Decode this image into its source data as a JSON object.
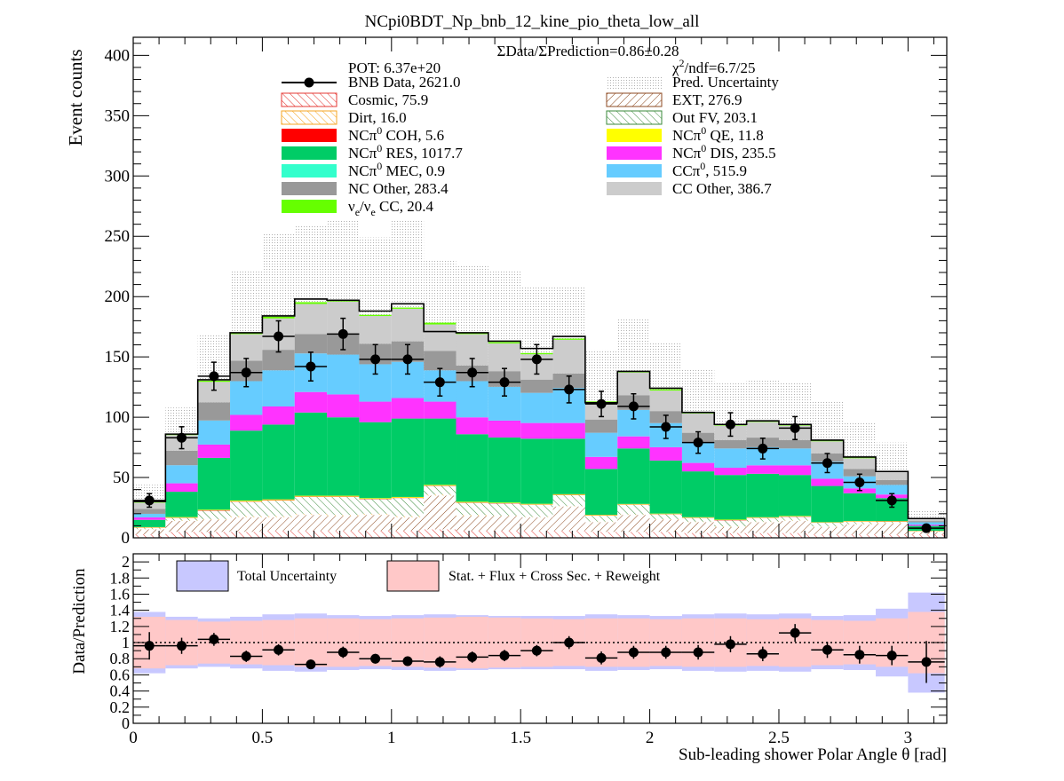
{
  "title": "NCpi0BDT_Np_bnb_12_kine_pio_theta_low_all",
  "chart_data": [
    {
      "type": "bar",
      "stacked": true,
      "ylabel": "Event counts",
      "xlim": [
        0,
        3.15
      ],
      "ylim": [
        0,
        415
      ],
      "yticks": [
        0,
        50,
        100,
        150,
        200,
        250,
        300,
        350,
        400
      ],
      "bin_edges": [
        0,
        0.125,
        0.25,
        0.375,
        0.5,
        0.625,
        0.75,
        0.875,
        1.0,
        1.125,
        1.25,
        1.375,
        1.5,
        1.625,
        1.75,
        1.875,
        2.0,
        2.125,
        2.25,
        2.375,
        2.5,
        2.625,
        2.75,
        2.875,
        3.0,
        3.142
      ],
      "annotations": {
        "ratio": "ΣData/ΣPrediction=0.86±0.28",
        "pot": "POT: 6.37e+20",
        "chi2_lead": "χ",
        "chi2_sup": "2",
        "chi2_rest": "/ndf=6.7/25"
      },
      "legend": [
        {
          "key": "data",
          "label": "BNB Data, 2621.0",
          "style": "marker",
          "color": "#000000"
        },
        {
          "key": "unc",
          "label": "Pred. Uncertainty",
          "style": "dots",
          "color": "#bdbdbd"
        },
        {
          "key": "cosmic",
          "label": "Cosmic, 75.9",
          "style": "hatch",
          "color": "#e53935"
        },
        {
          "key": "ext",
          "label": "EXT, 276.9",
          "style": "hatch",
          "color": "#8d4a20"
        },
        {
          "key": "dirt",
          "label": "Dirt, 16.0",
          "style": "hatch",
          "color": "#f5a623"
        },
        {
          "key": "outfv",
          "label": "Out FV, 203.1",
          "style": "hatch",
          "color": "#3a8a3a"
        },
        {
          "key": "coh",
          "label_a": "NCπ",
          "label_sup": "0",
          "label_b": " COH,  5.6",
          "style": "solid",
          "color": "#ff0000"
        },
        {
          "key": "qe",
          "label_a": "NCπ",
          "label_sup": "0",
          "label_b": " QE,  11.8",
          "style": "solid",
          "color": "#ffff00"
        },
        {
          "key": "res",
          "label_a": "NCπ",
          "label_sup": "0",
          "label_b": " RES,  1017.7",
          "style": "solid",
          "color": "#00cc66"
        },
        {
          "key": "dis",
          "label_a": "NCπ",
          "label_sup": "0",
          "label_b": " DIS,  235.5",
          "style": "solid",
          "color": "#ff33ff"
        },
        {
          "key": "mec",
          "label_a": "NCπ",
          "label_sup": "0",
          "label_b": " MEC,  0.9",
          "style": "solid",
          "color": "#33ffcc"
        },
        {
          "key": "ccpi0",
          "label_a": "CCπ",
          "label_sup": "0",
          "label_b": ", 515.9",
          "style": "solid",
          "color": "#66ccff"
        },
        {
          "key": "ncother",
          "label": "NC Other, 283.4",
          "style": "solid",
          "color": "#999999"
        },
        {
          "key": "ccother",
          "label": "CC Other, 386.7",
          "style": "solid",
          "color": "#cccccc"
        },
        {
          "key": "nue",
          "label_a": "ν",
          "label_sub": "e",
          "label_mid": "/ν",
          "label_sub2": "e",
          "label_b": " CC, 20.4",
          "style": "solid",
          "color": "#66ff00"
        }
      ],
      "series": [
        {
          "name": "Cosmic",
          "key": "cosmic",
          "values": [
            3,
            5,
            5,
            5,
            6,
            6,
            6,
            6,
            6,
            7,
            6,
            6,
            6,
            6,
            5,
            5,
            5,
            4,
            4,
            4,
            4,
            3,
            3,
            3,
            3
          ]
        },
        {
          "name": "EXT",
          "key": "ext",
          "values": [
            4,
            9,
            10,
            12,
            11,
            13,
            12,
            13,
            11,
            28,
            12,
            12,
            11,
            20,
            8,
            14,
            10,
            9,
            5,
            9,
            10,
            6,
            8,
            9,
            2
          ]
        },
        {
          "name": "Dirt",
          "key": "dirt",
          "values": [
            0.5,
            0.5,
            0.5,
            1,
            1,
            1,
            1,
            1,
            1,
            1,
            1,
            0.5,
            0.5,
            0.5,
            0.5,
            0.5,
            0.5,
            0.5,
            0.5,
            0.5,
            0.5,
            0.5,
            0.5,
            0.5,
            0.2
          ]
        },
        {
          "name": "Out FV",
          "key": "outfv",
          "values": [
            1,
            2,
            7,
            12,
            13,
            14,
            15,
            12,
            15,
            7,
            10,
            10,
            10,
            9,
            5,
            8,
            4,
            3,
            5,
            3,
            3,
            3,
            2,
            1,
            0.5
          ]
        },
        {
          "name": "NCπ0 COH",
          "key": "coh",
          "values": [
            0.1,
            0.2,
            0.3,
            0.3,
            0.3,
            0.3,
            0.3,
            0.3,
            0.3,
            0.3,
            0.3,
            0.2,
            0.2,
            0.2,
            0.2,
            0.2,
            0.2,
            0.2,
            0.2,
            0.2,
            0.2,
            0.2,
            0.2,
            0.1,
            0.1
          ]
        },
        {
          "name": "NCπ0 QE",
          "key": "qe",
          "values": [
            0.3,
            0.5,
            0.5,
            0.6,
            0.6,
            0.6,
            0.6,
            0.6,
            0.6,
            0.6,
            0.6,
            0.5,
            0.5,
            0.5,
            0.4,
            0.4,
            0.4,
            0.4,
            0.4,
            0.4,
            0.4,
            0.3,
            0.3,
            0.3,
            0.1
          ]
        },
        {
          "name": "NCπ0 RES",
          "key": "res",
          "values": [
            6,
            21,
            43,
            58,
            62,
            69,
            65,
            63,
            65,
            55,
            56,
            54,
            54,
            46,
            38,
            46,
            44,
            38,
            37,
            36,
            34,
            30,
            23,
            19,
            4
          ]
        },
        {
          "name": "NCπ0 DIS",
          "key": "dis",
          "values": [
            2,
            7,
            11,
            13,
            15,
            17,
            19,
            17,
            17,
            14,
            14,
            14,
            13,
            13,
            10,
            10,
            11,
            7,
            6,
            7,
            8,
            6,
            4,
            3,
            1
          ]
        },
        {
          "name": "NCπ0 MEC",
          "key": "mec",
          "values": [
            0,
            0,
            0,
            0,
            0,
            0,
            0,
            0,
            0,
            0,
            0,
            0,
            0,
            0,
            0,
            0,
            0,
            0,
            0,
            0,
            0,
            0,
            0,
            0,
            0
          ]
        },
        {
          "name": "CCπ0",
          "key": "ccpi0",
          "values": [
            3,
            15,
            20,
            28,
            30,
            32,
            33,
            31,
            30,
            26,
            30,
            28,
            25,
            29,
            20,
            22,
            20,
            17,
            16,
            15,
            14,
            14,
            10,
            8,
            2
          ]
        },
        {
          "name": "NC Other",
          "key": "ncother",
          "values": [
            4,
            12,
            15,
            17,
            17,
            16,
            17,
            17,
            17,
            16,
            13,
            13,
            11,
            12,
            11,
            12,
            10,
            8,
            7,
            8,
            7,
            7,
            6,
            4,
            1
          ]
        },
        {
          "name": "CC Other",
          "key": "ccother",
          "values": [
            5,
            13,
            17,
            22,
            26,
            25,
            27,
            23,
            27,
            22,
            26,
            23,
            21,
            28,
            14,
            19,
            17,
            16,
            12,
            13,
            12,
            10,
            9,
            7,
            2
          ]
        },
        {
          "name": "νe/ν̄e CC",
          "key": "nue",
          "values": [
            0.3,
            1,
            1,
            1,
            1.5,
            1.5,
            1.5,
            1,
            1,
            1.5,
            1,
            1,
            1,
            1,
            1,
            1,
            1,
            1,
            1,
            1,
            1,
            1,
            1,
            0.5,
            0.2
          ]
        }
      ],
      "prediction_total": [
        30,
        86,
        131,
        170,
        184,
        198,
        197,
        188,
        194,
        171,
        170,
        163,
        157,
        167,
        112,
        138,
        124,
        104,
        94,
        97,
        94,
        81,
        67,
        55,
        16
      ],
      "prediction_uncertainty": [
        14,
        22,
        38,
        51,
        69,
        61,
        67,
        61,
        70,
        60,
        56,
        58,
        51,
        41,
        44,
        44,
        38,
        36,
        34,
        34,
        35,
        32,
        29,
        24,
        7
      ],
      "data": {
        "x": [
          0.0625,
          0.1875,
          0.3125,
          0.4375,
          0.5625,
          0.6875,
          0.8125,
          0.9375,
          1.0625,
          1.1875,
          1.3125,
          1.4375,
          1.5625,
          1.6875,
          1.8125,
          1.9375,
          2.0625,
          2.1875,
          2.3125,
          2.4375,
          2.5625,
          2.6875,
          2.8125,
          2.9375,
          3.071
        ],
        "y": [
          31,
          83,
          134,
          137,
          167,
          142,
          169,
          148,
          148,
          129,
          137,
          129,
          148,
          123,
          111,
          109,
          92,
          79,
          94,
          74,
          91,
          62,
          46,
          31,
          8
        ],
        "yerr": [
          5.6,
          9.1,
          11.6,
          11.7,
          12.9,
          11.9,
          13.0,
          12.2,
          12.2,
          11.4,
          11.7,
          11.4,
          12.2,
          11.1,
          10.5,
          10.4,
          9.6,
          8.9,
          9.7,
          8.6,
          9.5,
          7.9,
          6.8,
          5.6,
          2.8
        ]
      }
    },
    {
      "type": "bar",
      "role": "ratio",
      "xlabel": "Sub-leading shower Polar Angle θ [rad]",
      "ylabel": "Data/Prediction",
      "xlim": [
        0,
        3.15
      ],
      "ylim": [
        0,
        2.1
      ],
      "xticks": [
        0,
        0.5,
        1,
        1.5,
        2,
        2.5,
        3
      ],
      "yticks": [
        0,
        0.2,
        0.4,
        0.6,
        0.8,
        1,
        1.2,
        1.4,
        1.6,
        1.8,
        2
      ],
      "legend": [
        {
          "label": "Total Uncertainty",
          "color": "#c8c8ff"
        },
        {
          "label": "Stat. + Flux + Cross Sec. + Reweight",
          "color": "#ffc8c8"
        }
      ],
      "total_uncertainty": [
        0.38,
        0.32,
        0.3,
        0.32,
        0.35,
        0.36,
        0.34,
        0.33,
        0.34,
        0.35,
        0.34,
        0.33,
        0.33,
        0.33,
        0.35,
        0.34,
        0.33,
        0.35,
        0.36,
        0.35,
        0.36,
        0.33,
        0.34,
        0.42,
        0.62
      ],
      "stat_flux_xs_uncertainty": [
        0.32,
        0.28,
        0.26,
        0.27,
        0.28,
        0.3,
        0.3,
        0.29,
        0.3,
        0.31,
        0.32,
        0.31,
        0.3,
        0.29,
        0.3,
        0.3,
        0.29,
        0.3,
        0.3,
        0.29,
        0.3,
        0.28,
        0.27,
        0.3,
        0.38
      ],
      "data": {
        "y": [
          0.96,
          0.96,
          1.04,
          0.83,
          0.91,
          0.73,
          0.88,
          0.8,
          0.77,
          0.76,
          0.82,
          0.84,
          0.9,
          1.0,
          0.81,
          0.88,
          0.88,
          0.88,
          0.98,
          0.86,
          1.12,
          0.91,
          0.85,
          0.84,
          0.76
        ],
        "yerr": [
          0.17,
          0.1,
          0.08,
          0.07,
          0.07,
          0.06,
          0.07,
          0.06,
          0.06,
          0.07,
          0.07,
          0.07,
          0.07,
          0.08,
          0.08,
          0.08,
          0.08,
          0.09,
          0.1,
          0.09,
          0.11,
          0.1,
          0.11,
          0.12,
          0.26
        ]
      }
    }
  ]
}
